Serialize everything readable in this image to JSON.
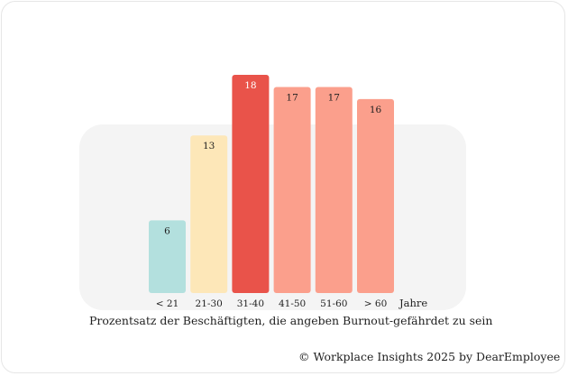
{
  "chart_data": {
    "type": "bar",
    "categories": [
      "< 21",
      "21-30",
      "31-40",
      "41-50",
      "51-60",
      "> 60"
    ],
    "values": [
      6,
      13,
      18,
      17,
      17,
      16
    ],
    "bar_colors": [
      "#b3e0de",
      "#fde7b8",
      "#e9534a",
      "#fb9f8c",
      "#fb9f8c",
      "#fb9f8c"
    ],
    "label_colors": [
      "#1f1f1f",
      "#1f1f1f",
      "#ffffff",
      "#1f1f1f",
      "#1f1f1f",
      "#1f1f1f"
    ],
    "xunit": "Jahre",
    "ylim": [
      0,
      18
    ],
    "grid": false,
    "caption": "Prozentsatz der Beschäftigten, die angeben Burnout-gefährdet zu sein"
  },
  "colors": {
    "panel_background": "#f4f4f4",
    "text": "#1f1f1f"
  },
  "footer": {
    "credit": "© Workplace Insights 2025 by DearEmployee"
  }
}
